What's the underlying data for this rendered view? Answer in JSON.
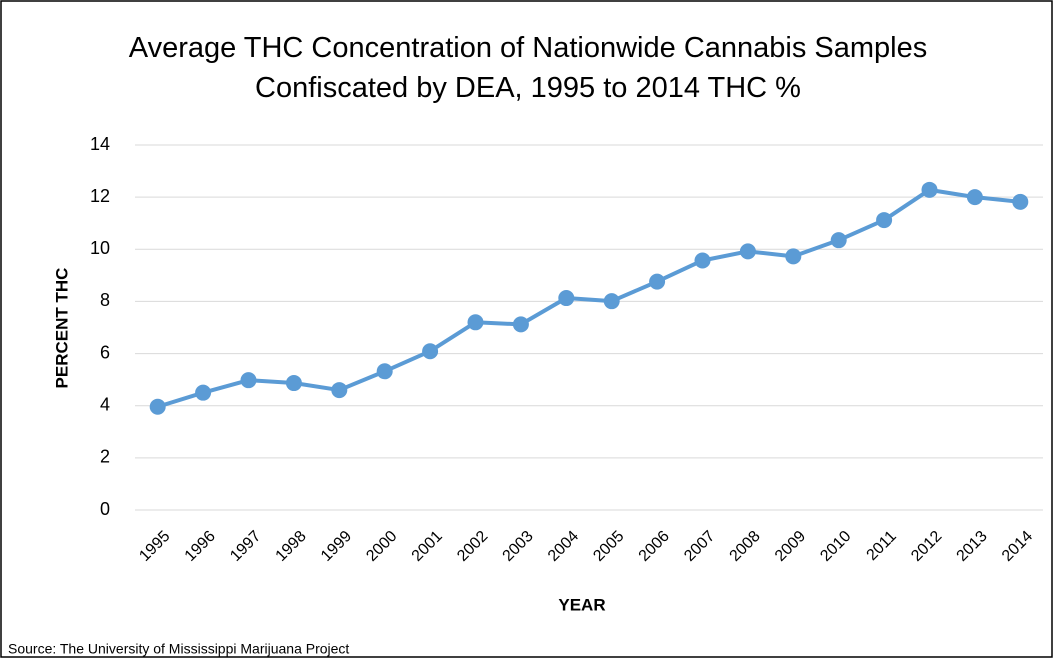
{
  "chart_data": {
    "type": "line",
    "title": "Average THC Concentration of Nationwide Cannabis Samples Confiscated by DEA, 1995 to 2014 THC %",
    "x_label": "YEAR",
    "y_label": "PERCENT THC",
    "source": "Source: The University of Mississippi Marijuana Project",
    "categories": [
      "1995",
      "1996",
      "1997",
      "1998",
      "1999",
      "2000",
      "2001",
      "2002",
      "2003",
      "2004",
      "2005",
      "2006",
      "2007",
      "2008",
      "2009",
      "2010",
      "2011",
      "2012",
      "2013",
      "2014"
    ],
    "values": [
      3.96,
      4.5,
      4.98,
      4.87,
      4.6,
      5.32,
      6.09,
      7.2,
      7.12,
      8.13,
      8.01,
      8.76,
      9.57,
      9.92,
      9.73,
      10.35,
      11.12,
      12.28,
      12.0,
      11.82
    ],
    "color": "#5b9bd5",
    "ylim": [
      0,
      14
    ],
    "yticks": [
      0,
      2,
      4,
      6,
      8,
      10,
      12,
      14
    ],
    "grid": true
  }
}
